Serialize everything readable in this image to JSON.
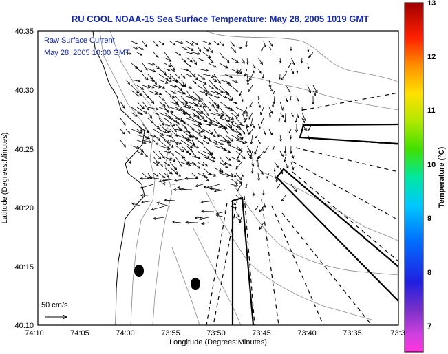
{
  "title": "RU COOL  NOAA-15  Sea Surface Temperature:  May 28, 2005 1019 GMT",
  "annotation": {
    "line1": "Raw Surface Current",
    "line2": "May 28, 2005 10:00 GMT"
  },
  "scale": {
    "label": "50 cm/s"
  },
  "axes": {
    "xlabel": "Longitude (Degrees:Minutes)",
    "ylabel": "Latitude (Degrees:Minutes)",
    "x_ticks": [
      "74:10",
      "74:05",
      "74:00",
      "73:55",
      "73:50",
      "73:45",
      "73:40",
      "73:35",
      "73:3"
    ],
    "y_ticks": [
      "40:35",
      "40:30",
      "40:25",
      "40:20",
      "40:15",
      "40:10"
    ]
  },
  "colorbar": {
    "label": "Temperature (°C)",
    "ticks": [
      "13",
      "12",
      "11",
      "10",
      "9",
      "8",
      "7"
    ],
    "range": [
      6.5,
      13
    ]
  },
  "colors": {
    "title": "#1428b0",
    "annotation": "#1428b0",
    "frame": "#000000"
  }
}
